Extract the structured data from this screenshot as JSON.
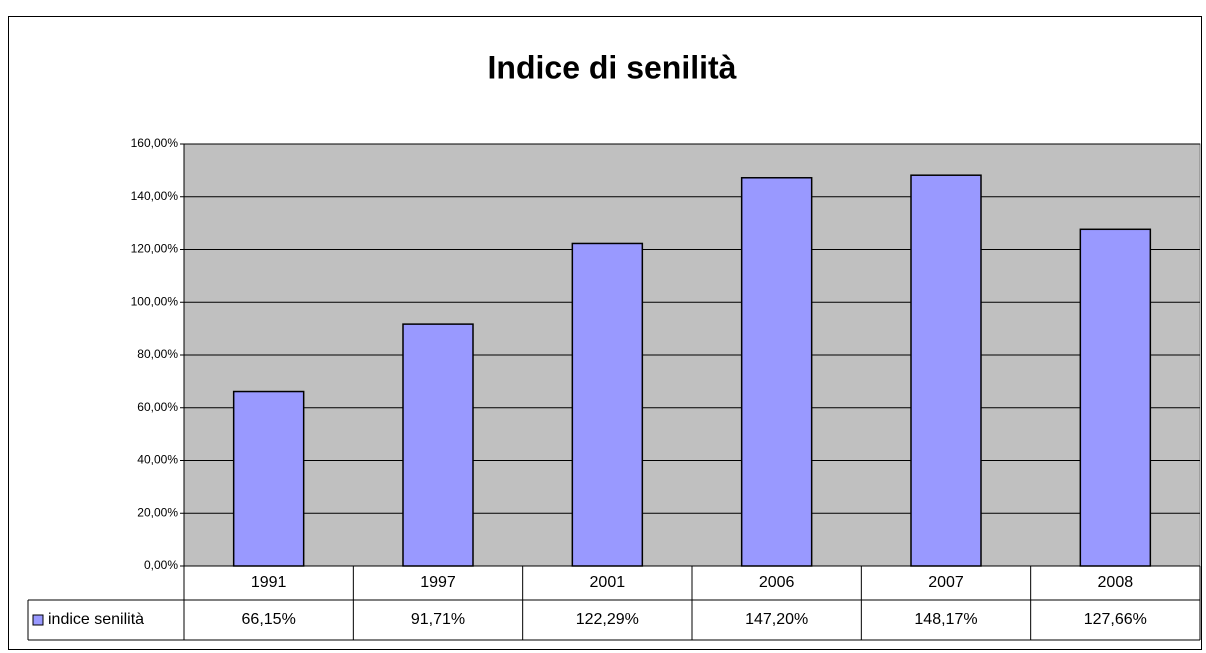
{
  "chart_data": {
    "type": "bar",
    "title": "Indice di senilità",
    "categories": [
      "1991",
      "1997",
      "2001",
      "2006",
      "2007",
      "2008"
    ],
    "series": [
      {
        "name": "indice senilità",
        "color": "#9999ff",
        "values": [
          66.15,
          91.71,
          122.29,
          147.2,
          148.17,
          127.66
        ],
        "value_labels": [
          "66,15%",
          "91,71%",
          "122,29%",
          "147,20%",
          "148,17%",
          "127,66%"
        ]
      }
    ],
    "ylim": [
      0,
      160
    ],
    "yticks": [
      {
        "value": 0,
        "label": "0,00%"
      },
      {
        "value": 20,
        "label": "20,00%"
      },
      {
        "value": 40,
        "label": "40,00%"
      },
      {
        "value": 60,
        "label": "60,00%"
      },
      {
        "value": 80,
        "label": "80,00%"
      },
      {
        "value": 100,
        "label": "100,00%"
      },
      {
        "value": 120,
        "label": "120,00%"
      },
      {
        "value": 140,
        "label": "140,00%"
      },
      {
        "value": 160,
        "label": "160,00%"
      }
    ],
    "grid": true,
    "plot_background": "#c0c0c0"
  }
}
